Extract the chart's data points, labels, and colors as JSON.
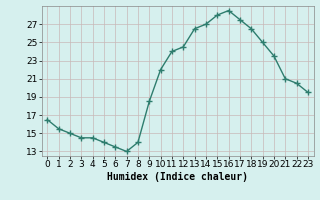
{
  "x": [
    0,
    1,
    2,
    3,
    4,
    5,
    6,
    7,
    8,
    9,
    10,
    11,
    12,
    13,
    14,
    15,
    16,
    17,
    18,
    19,
    20,
    21,
    22,
    23
  ],
  "y": [
    16.5,
    15.5,
    15.0,
    14.5,
    14.5,
    14.0,
    13.5,
    13.0,
    14.0,
    18.5,
    22.0,
    24.0,
    24.5,
    26.5,
    27.0,
    28.0,
    28.5,
    27.5,
    26.5,
    25.0,
    23.5,
    21.0,
    20.5,
    19.5
  ],
  "line_color": "#2e7d6e",
  "marker": "+",
  "marker_size": 4,
  "marker_linewidth": 1.0,
  "bg_color": "#d6f0ee",
  "grid_color_h": "#c8b8b8",
  "grid_color_v": "#c8b8b8",
  "xlabel": "Humidex (Indice chaleur)",
  "xlim": [
    -0.5,
    23.5
  ],
  "ylim": [
    12.5,
    29.0
  ],
  "yticks": [
    13,
    15,
    17,
    19,
    21,
    23,
    25,
    27
  ],
  "xticks": [
    0,
    1,
    2,
    3,
    4,
    5,
    6,
    7,
    8,
    9,
    10,
    11,
    12,
    13,
    14,
    15,
    16,
    17,
    18,
    19,
    20,
    21,
    22,
    23
  ],
  "xlabel_fontsize": 7,
  "tick_fontsize": 6.5,
  "line_width": 1.0
}
